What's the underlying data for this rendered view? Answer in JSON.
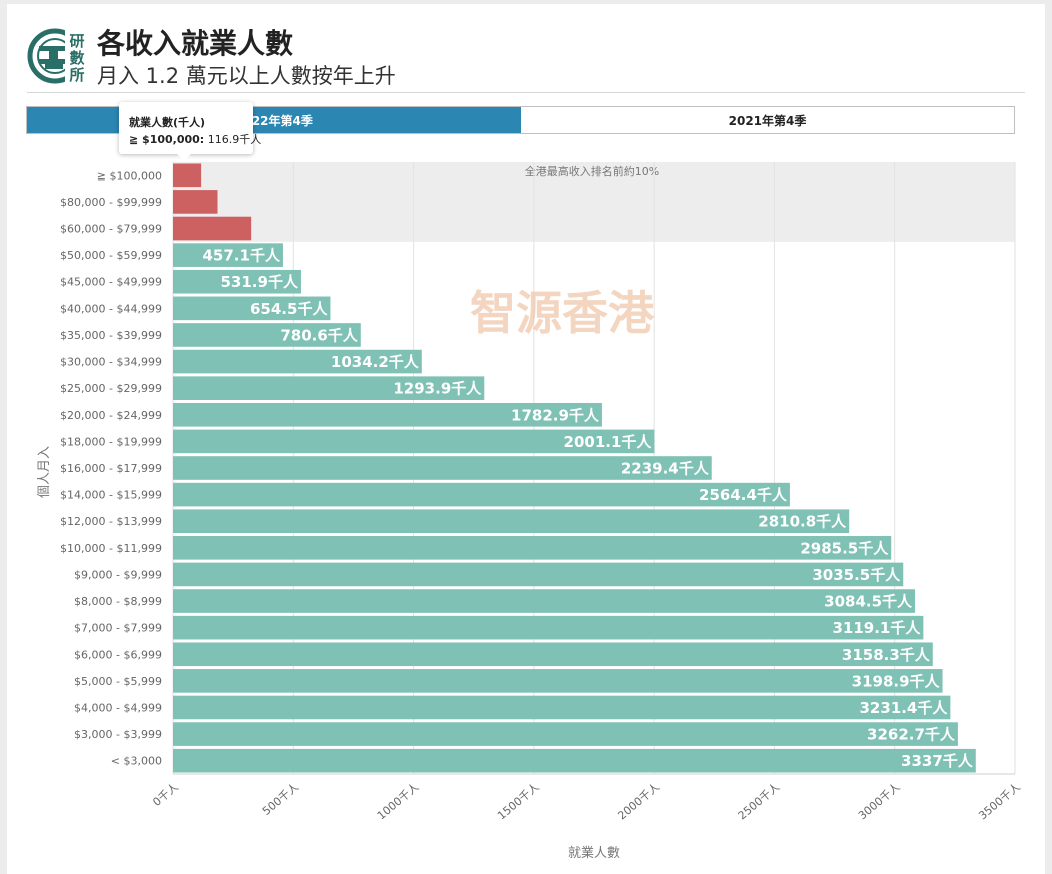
{
  "header": {
    "logo_text": "研數所",
    "title": "各收入就業人數",
    "subtitle": "月入 1.2 萬元以上人數按年上升"
  },
  "toggle": {
    "options": [
      "2022年第4季",
      "2021年第4季"
    ],
    "selected": "2022年第4季"
  },
  "tooltip": {
    "title": "就業人數(千人)",
    "label": "≧ $100,000:",
    "value": "116.9千人"
  },
  "colors": {
    "top_band": "#cd6060",
    "bars": "#80c1b5",
    "band_bg": "#ededed",
    "toggle_active": "#2b86b2"
  },
  "chart_data": {
    "type": "bar",
    "orientation": "horizontal",
    "value_suffix": "千人",
    "xlabel": "就業人數",
    "ylabel": "個人月入",
    "xlim": [
      0,
      3500
    ],
    "xticks": [
      0,
      500,
      1000,
      1500,
      2000,
      2500,
      3000,
      3500
    ],
    "xtick_labels": [
      "0千人",
      "500千人",
      "1000千人",
      "1500千人",
      "2000千人",
      "2500千人",
      "3000千人",
      "3500千人"
    ],
    "grid": "vertical",
    "highlight_band": {
      "label": "全港最高收入排名前約10%",
      "categories": [
        "≧ $100,000",
        "$80,000 - $99,999",
        "$60,000 - $79,999"
      ]
    },
    "watermark": "智源香港",
    "categories": [
      "≧ $100,000",
      "$80,000 - $99,999",
      "$60,000 - $79,999",
      "$50,000 - $59,999",
      "$45,000 - $49,999",
      "$40,000 - $44,999",
      "$35,000 - $39,999",
      "$30,000 - $34,999",
      "$25,000 - $29,999",
      "$20,000 - $24,999",
      "$18,000 - $19,999",
      "$16,000 - $17,999",
      "$14,000 - $15,999",
      "$12,000 - $13,999",
      "$10,000 - $11,999",
      "$9,000 - $9,999",
      "$8,000 - $8,999",
      "$7,000 - $7,999",
      "$6,000 - $6,999",
      "$5,000 - $5,999",
      "$4,000 - $4,999",
      "$3,000 - $3,999",
      "< $3,000"
    ],
    "values": [
      116.9,
      185,
      325,
      457.1,
      531.9,
      654.5,
      780.6,
      1034.2,
      1293.9,
      1782.9,
      2001.1,
      2239.4,
      2564.4,
      2810.8,
      2985.5,
      3035.5,
      3084.5,
      3119.1,
      3158.3,
      3198.9,
      3231.4,
      3262.7,
      3337
    ],
    "labels": [
      null,
      null,
      null,
      "457.1",
      "531.9",
      "654.5",
      "780.6",
      "1034.2",
      "1293.9",
      "1782.9",
      "2001.1",
      "2239.4",
      "2564.4",
      "2810.8",
      "2985.5",
      "3035.5",
      "3084.5",
      "3119.1",
      "3158.3",
      "3198.9",
      "3231.4",
      "3262.7",
      "3337"
    ]
  }
}
